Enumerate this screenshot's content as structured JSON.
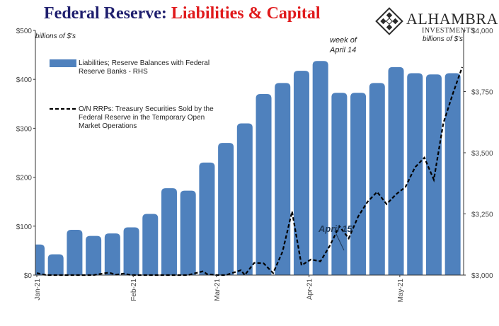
{
  "title": {
    "part1": "Federal Reserve:",
    "part2": "Liabilities & Capital"
  },
  "logo": {
    "name": "ALHAMBRA",
    "sub": "INVESTMENTS",
    "icon": "diamond-grid-icon"
  },
  "colors": {
    "bars": "#4f81bd",
    "title_blue": "#1f1f6e",
    "title_red": "#e0191b",
    "line": "#000000"
  },
  "chart_data": {
    "type": "bar",
    "left_unit": "billions of $'s",
    "right_unit": "billions of $'s",
    "left_axis": {
      "ticks": [
        "$0",
        "$100",
        "$200",
        "$300",
        "$400",
        "$500"
      ],
      "range": [
        0,
        500
      ]
    },
    "right_axis": {
      "ticks": [
        "$3,000",
        "$3,250",
        "$3,500",
        "$3,750",
        "$4,000"
      ],
      "range": [
        3000,
        4000
      ]
    },
    "x_labels": [
      "Jan-21",
      "Feb-21",
      "Mar-21",
      "Apr-21",
      "May-21"
    ],
    "x_label_positions": [
      0,
      5.1,
      9.5,
      14.4,
      19.2
    ],
    "x_range": [
      0,
      22.5
    ],
    "legend": {
      "bars": "Liabilities; Reserve Balances with Federal Reserve Banks - RHS",
      "line": "O/N RRPs: Treasury Securities Sold by the Federal Reserve in the Temporary Open Market Operations"
    },
    "annotations": {
      "week_of": "week of April 14",
      "april15": "April 15"
    },
    "bars": {
      "name": "Liabilities; Reserve Balances with Federal Reserve Banks - RHS",
      "axis": "right",
      "x": [
        0,
        1,
        2,
        3,
        4,
        5,
        6,
        7,
        8,
        9,
        10,
        11,
        12,
        13,
        14,
        15,
        16,
        17,
        18,
        19,
        20,
        21,
        22
      ],
      "values": [
        3125,
        3085,
        3185,
        3160,
        3170,
        3195,
        3250,
        3355,
        3345,
        3460,
        3540,
        3620,
        3740,
        3785,
        3835,
        3875,
        3745,
        3745,
        3785,
        3850,
        3825,
        3820,
        3825
      ]
    },
    "line": {
      "name": "O/N RRPs: Treasury Securities Sold by the Federal Reserve in the Temporary Open Market Operations",
      "axis": "left",
      "x": [
        0,
        0.5,
        1,
        2,
        3,
        3.8,
        4.2,
        4.6,
        5,
        6,
        7,
        8,
        8.8,
        9,
        9.5,
        10,
        10.8,
        11,
        11.5,
        12,
        12.5,
        13,
        13.5,
        14,
        14.5,
        15,
        15.5,
        16,
        16.5,
        17,
        17.5,
        18,
        18.5,
        19,
        19.5,
        20,
        20.5,
        21,
        21.5,
        22,
        22.5
      ],
      "values": [
        4,
        0,
        0,
        0,
        0,
        5,
        1,
        3,
        0,
        0,
        0,
        0,
        8,
        2,
        0,
        0,
        10,
        0,
        25,
        24,
        4,
        48,
        130,
        20,
        32,
        28,
        60,
        100,
        75,
        120,
        150,
        170,
        145,
        165,
        180,
        220,
        240,
        195,
        310,
        370,
        425
      ]
    }
  }
}
